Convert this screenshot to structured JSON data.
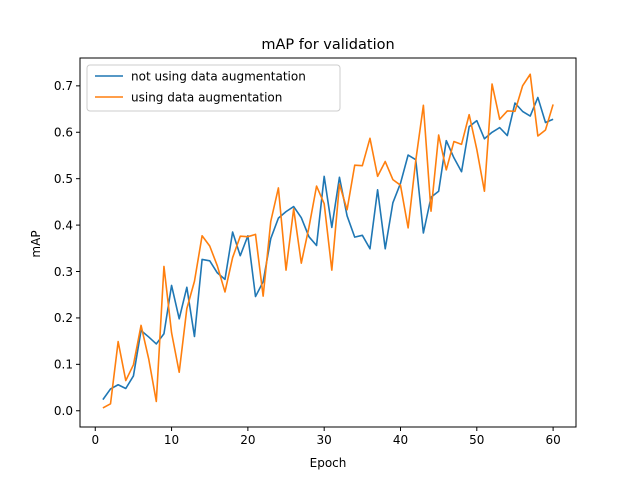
{
  "chart_data": {
    "type": "line",
    "title": "mAP for validation",
    "xlabel": "Epoch",
    "ylabel": "mAP",
    "xlim": [
      -2,
      63
    ],
    "ylim": [
      -0.035,
      0.76
    ],
    "xticks": [
      0,
      10,
      20,
      30,
      40,
      50,
      60
    ],
    "xtick_labels": [
      "0",
      "10",
      "20",
      "30",
      "40",
      "50",
      "60"
    ],
    "yticks": [
      0.0,
      0.1,
      0.2,
      0.3,
      0.4,
      0.5,
      0.6,
      0.7
    ],
    "ytick_labels": [
      "0.0",
      "0.1",
      "0.2",
      "0.3",
      "0.4",
      "0.5",
      "0.6",
      "0.7"
    ],
    "grid": false,
    "legend_position": "top-left",
    "x": [
      1,
      2,
      3,
      4,
      5,
      6,
      7,
      8,
      9,
      10,
      11,
      12,
      13,
      14,
      15,
      16,
      17,
      18,
      19,
      20,
      21,
      22,
      23,
      24,
      25,
      26,
      27,
      28,
      29,
      30,
      31,
      32,
      33,
      34,
      35,
      36,
      37,
      38,
      39,
      40,
      41,
      42,
      43,
      44,
      45,
      46,
      47,
      48,
      49,
      50,
      51,
      52,
      53,
      54,
      55,
      56,
      57,
      58,
      59,
      60
    ],
    "series": [
      {
        "name": "not using data augmentation",
        "color": "#1f77b4",
        "values": [
          0.024,
          0.047,
          0.056,
          0.048,
          0.075,
          0.173,
          0.159,
          0.144,
          0.166,
          0.27,
          0.198,
          0.266,
          0.16,
          0.326,
          0.323,
          0.297,
          0.283,
          0.385,
          0.334,
          0.377,
          0.246,
          0.278,
          0.371,
          0.415,
          0.429,
          0.44,
          0.416,
          0.375,
          0.356,
          0.505,
          0.395,
          0.503,
          0.42,
          0.374,
          0.378,
          0.349,
          0.476,
          0.349,
          0.448,
          0.49,
          0.551,
          0.541,
          0.383,
          0.46,
          0.473,
          0.582,
          0.545,
          0.515,
          0.612,
          0.625,
          0.586,
          0.6,
          0.61,
          0.593,
          0.663,
          0.645,
          0.635,
          0.675,
          0.621,
          0.628
        ]
      },
      {
        "name": "using data augmentation",
        "color": "#ff7f0e",
        "values": [
          0.006,
          0.015,
          0.149,
          0.065,
          0.099,
          0.184,
          0.112,
          0.02,
          0.311,
          0.168,
          0.083,
          0.22,
          0.279,
          0.377,
          0.355,
          0.312,
          0.256,
          0.33,
          0.376,
          0.375,
          0.38,
          0.247,
          0.408,
          0.48,
          0.303,
          0.435,
          0.318,
          0.395,
          0.484,
          0.446,
          0.303,
          0.488,
          0.433,
          0.529,
          0.528,
          0.587,
          0.505,
          0.537,
          0.498,
          0.486,
          0.394,
          0.539,
          0.658,
          0.43,
          0.594,
          0.519,
          0.58,
          0.574,
          0.638,
          0.563,
          0.473,
          0.704,
          0.628,
          0.646,
          0.645,
          0.7,
          0.725,
          0.592,
          0.605,
          0.66
        ]
      }
    ]
  }
}
